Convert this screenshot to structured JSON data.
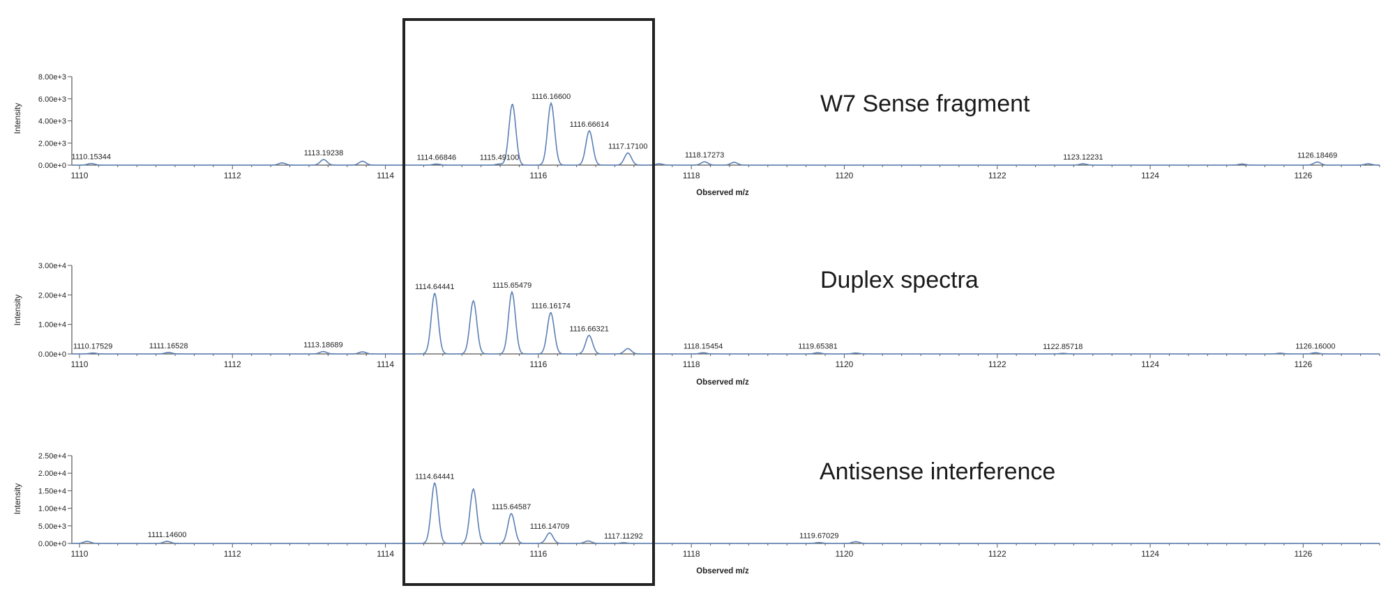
{
  "colors": {
    "trace": "#5b7fb4",
    "axis": "#555555",
    "text": "#222222",
    "box": "#222222"
  },
  "chart_data": [
    {
      "type": "line",
      "panel_label": "W7 Sense fragment",
      "xlabel": "Observed m/z",
      "ylabel": "Intensity",
      "xlim": [
        1109.9,
        1127.0
      ],
      "ylim": [
        0,
        8000
      ],
      "x_ticks": [
        "1110",
        "1112",
        "1114",
        "1116",
        "1118",
        "1120",
        "1122",
        "1124",
        "1126"
      ],
      "y_ticks": [
        "0.00e+0",
        "2.00e+3",
        "4.00e+3",
        "6.00e+3",
        "8.00e+3"
      ],
      "peaks": [
        {
          "x": 1110.15344,
          "y": 150,
          "label": "1110.15344"
        },
        {
          "x": 1112.65,
          "y": 200
        },
        {
          "x": 1113.19238,
          "y": 500,
          "label": "1113.19238"
        },
        {
          "x": 1113.7,
          "y": 350
        },
        {
          "x": 1114.66846,
          "y": 100,
          "label": "1114.66846"
        },
        {
          "x": 1115.491,
          "y": 100,
          "label": "1115.49100"
        },
        {
          "x": 1115.66,
          "y": 5500
        },
        {
          "x": 1116.166,
          "y": 5600,
          "label": "1116.16600"
        },
        {
          "x": 1116.66614,
          "y": 3100,
          "label": "1116.66614"
        },
        {
          "x": 1117.171,
          "y": 1100,
          "label": "1117.17100"
        },
        {
          "x": 1117.58,
          "y": 120
        },
        {
          "x": 1118.17273,
          "y": 300,
          "label": "1118.17273"
        },
        {
          "x": 1118.56,
          "y": 250
        },
        {
          "x": 1123.12231,
          "y": 120,
          "label": "1123.12231"
        },
        {
          "x": 1125.2,
          "y": 100
        },
        {
          "x": 1126.18469,
          "y": 280,
          "label": "1126.18469"
        },
        {
          "x": 1126.85,
          "y": 120
        }
      ]
    },
    {
      "type": "line",
      "panel_label": "Duplex spectra",
      "xlabel": "Observed m/z",
      "ylabel": "Intensity",
      "xlim": [
        1109.9,
        1127.0
      ],
      "ylim": [
        0,
        30000
      ],
      "x_ticks": [
        "1110",
        "1112",
        "1114",
        "1116",
        "1118",
        "1120",
        "1122",
        "1124",
        "1126"
      ],
      "y_ticks": [
        "0.00e+0",
        "1.00e+4",
        "2.00e+4",
        "3.00e+4"
      ],
      "peaks": [
        {
          "x": 1110.17529,
          "y": 300,
          "label": "1110.17529"
        },
        {
          "x": 1111.16528,
          "y": 500,
          "label": "1111.16528"
        },
        {
          "x": 1113.18689,
          "y": 800,
          "label": "1113.18689"
        },
        {
          "x": 1113.7,
          "y": 700
        },
        {
          "x": 1114.64441,
          "y": 20500,
          "label": "1114.64441"
        },
        {
          "x": 1115.15,
          "y": 18000
        },
        {
          "x": 1115.65479,
          "y": 21000,
          "label": "1115.65479"
        },
        {
          "x": 1116.16174,
          "y": 14000,
          "label": "1116.16174"
        },
        {
          "x": 1116.66321,
          "y": 6300,
          "label": "1116.66321"
        },
        {
          "x": 1117.17,
          "y": 1800
        },
        {
          "x": 1118.15454,
          "y": 400,
          "label": "1118.15454"
        },
        {
          "x": 1119.65381,
          "y": 400,
          "label": "1119.65381"
        },
        {
          "x": 1120.15,
          "y": 300
        },
        {
          "x": 1122.85718,
          "y": 200,
          "label": "1122.85718"
        },
        {
          "x": 1125.7,
          "y": 250
        },
        {
          "x": 1126.16,
          "y": 400,
          "label": "1126.16000"
        }
      ]
    },
    {
      "type": "line",
      "panel_label": "Antisense interference",
      "xlabel": "Observed m/z",
      "ylabel": "Intensity",
      "xlim": [
        1109.9,
        1127.0
      ],
      "ylim": [
        0,
        25000
      ],
      "x_ticks": [
        "1110",
        "1112",
        "1114",
        "1116",
        "1118",
        "1120",
        "1122",
        "1124",
        "1126"
      ],
      "y_ticks": [
        "0.00e+0",
        "5.00e+3",
        "1.00e+4",
        "1.50e+4",
        "2.00e+4",
        "2.50e+4"
      ],
      "peaks": [
        {
          "x": 1110.1,
          "y": 600
        },
        {
          "x": 1111.146,
          "y": 600,
          "label": "1111.14600"
        },
        {
          "x": 1114.64441,
          "y": 17200,
          "label": "1114.64441"
        },
        {
          "x": 1115.15,
          "y": 15500
        },
        {
          "x": 1115.64587,
          "y": 8500,
          "label": "1115.64587"
        },
        {
          "x": 1116.14709,
          "y": 3000,
          "label": "1116.14709"
        },
        {
          "x": 1116.65,
          "y": 700
        },
        {
          "x": 1117.11292,
          "y": 200,
          "label": "1117.11292"
        },
        {
          "x": 1119.67029,
          "y": 250,
          "label": "1119.67029"
        },
        {
          "x": 1120.15,
          "y": 500
        }
      ]
    }
  ]
}
